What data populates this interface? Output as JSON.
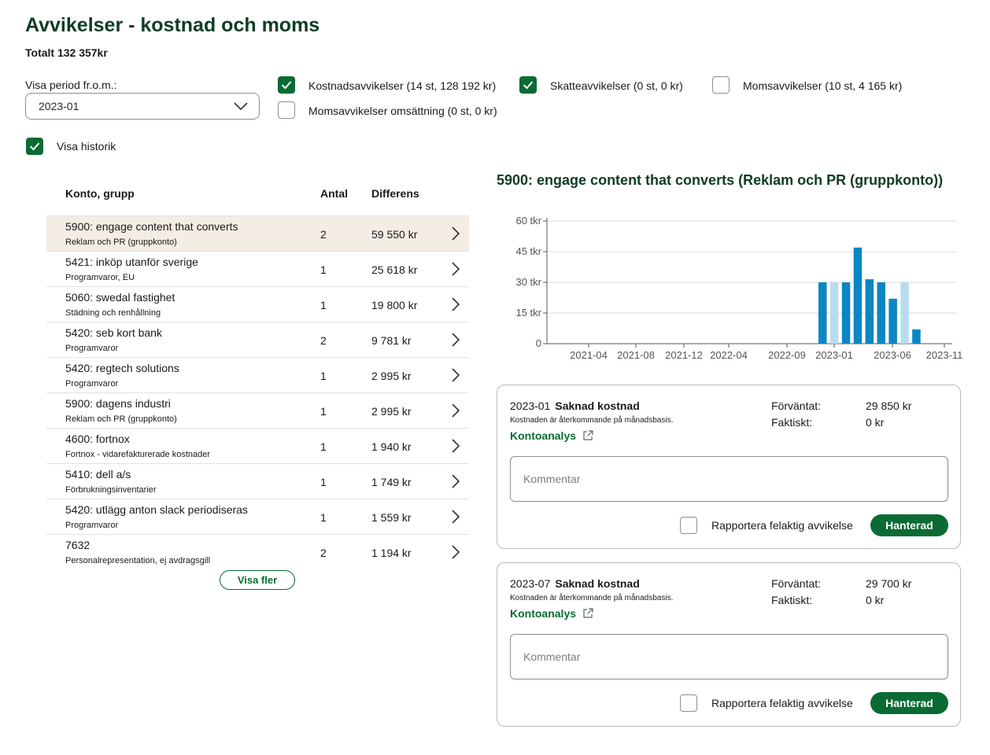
{
  "header": {
    "title": "Avvikelser - kostnad och moms",
    "total": "Totalt 132 357kr"
  },
  "filters": {
    "period_label": "Visa period fr.o.m.:",
    "period_value": "2023-01",
    "checkboxes": [
      {
        "label": "Kostnadsavvikelser (14 st, 128 192 kr)",
        "checked": true
      },
      {
        "label": "Skatteavvikelser (0 st, 0 kr)",
        "checked": true
      },
      {
        "label": "Momsavvikelser (10 st, 4 165 kr)",
        "checked": false
      },
      {
        "label": "Momsavvikelser omsättning (0 st, 0 kr)",
        "checked": false
      }
    ],
    "history_label": "Visa historik",
    "history_checked": true
  },
  "table": {
    "headers": {
      "account": "Konto, grupp",
      "count": "Antal",
      "diff": "Differens"
    },
    "rows": [
      {
        "account": "5900: engage content that converts",
        "group": "Reklam och PR (gruppkonto)",
        "count": "2",
        "diff": "59 550 kr",
        "selected": true
      },
      {
        "account": "5421: inköp utanför sverige",
        "group": "Programvaror, EU",
        "count": "1",
        "diff": "25 618 kr"
      },
      {
        "account": "5060: swedal fastighet",
        "group": "Städning och renhållning",
        "count": "1",
        "diff": "19 800 kr"
      },
      {
        "account": "5420: seb kort bank",
        "group": "Programvaror",
        "count": "2",
        "diff": "9 781 kr"
      },
      {
        "account": "5420: regtech solutions",
        "group": "Programvaror",
        "count": "1",
        "diff": "2 995 kr"
      },
      {
        "account": "5900: dagens industri",
        "group": "Reklam och PR (gruppkonto)",
        "count": "1",
        "diff": "2 995 kr"
      },
      {
        "account": "4600: fortnox",
        "group": "Fortnox - vidarefakturerade kostnader",
        "count": "1",
        "diff": "1 940 kr"
      },
      {
        "account": "5410: dell a/s",
        "group": "Förbrukningsinventarier",
        "count": "1",
        "diff": "1 749 kr"
      },
      {
        "account": "5420: utlägg anton slack periodiseras",
        "group": "Programvaror",
        "count": "1",
        "diff": "1 559 kr"
      },
      {
        "account": "7632",
        "group": "Personalrepresentation, ej avdragsgill",
        "count": "2",
        "diff": "1 194 kr"
      }
    ],
    "show_more": "Visa fler"
  },
  "chart_title": "5900: engage content that converts (Reklam och PR (gruppkonto))",
  "chart_data": {
    "type": "bar",
    "ytick_labels": [
      "0",
      "15 tkr",
      "30 tkr",
      "45 tkr",
      "60 tkr"
    ],
    "xtick_labels": [
      "2021-04",
      "2021-08",
      "2021-12",
      "2022-04",
      "2022-09",
      "2023-01",
      "2023-06",
      "2023-11"
    ],
    "ylim": [
      0,
      60
    ],
    "y_unit": "tkr",
    "bars_start_month": "2022-11",
    "values": [
      30,
      30,
      30,
      47,
      31.5,
      30,
      22,
      30,
      7
    ],
    "highlight": [
      false,
      true,
      false,
      false,
      false,
      false,
      false,
      true,
      false
    ],
    "colors": {
      "normal": "#0b86c3",
      "highlight": "#b8dcef"
    }
  },
  "cards": [
    {
      "period": "2023-01",
      "type": "Saknad kostnad",
      "desc": "Kostnaden är återkommande på månadsbasis.",
      "link": "Kontoanalys",
      "expected_label": "Förväntat:",
      "expected": "29 850 kr",
      "actual_label": "Faktiskt:",
      "actual": "0 kr",
      "comment_placeholder": "Kommentar",
      "report_label": "Rapportera felaktig avvikelse",
      "button": "Hanterad"
    },
    {
      "period": "2023-07",
      "type": "Saknad kostnad",
      "desc": "Kostnaden är återkommande på månadsbasis.",
      "link": "Kontoanalys",
      "expected_label": "Förväntat:",
      "expected": "29 700 kr",
      "actual_label": "Faktiskt:",
      "actual": "0 kr",
      "comment_placeholder": "Kommentar",
      "report_label": "Rapportera felaktig avvikelse",
      "button": "Hanterad"
    }
  ],
  "colors": {
    "brand_green": "#0a6b34",
    "title_green": "#0f3d22",
    "selected_row": "#f3ede4"
  }
}
